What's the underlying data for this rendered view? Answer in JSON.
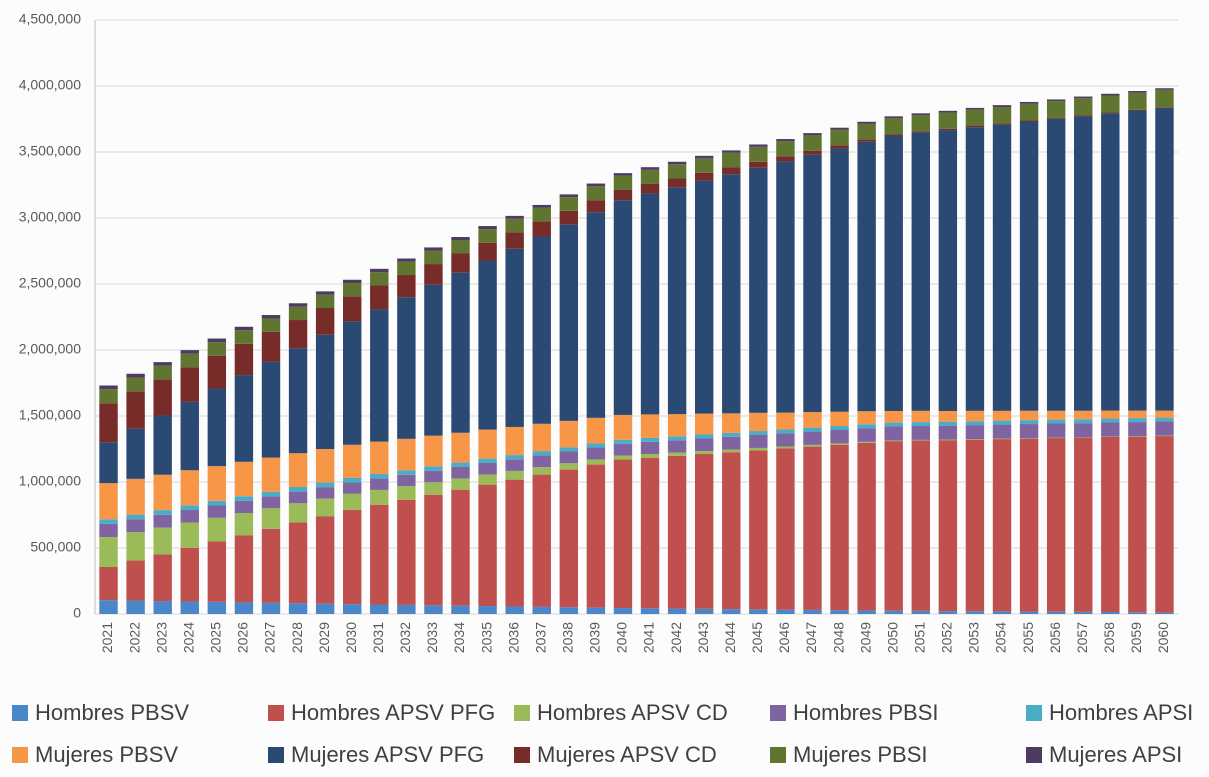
{
  "chart_data": {
    "type": "stacked_bar",
    "categories": [
      "2021",
      "2022",
      "2023",
      "2024",
      "2025",
      "2026",
      "2027",
      "2028",
      "2029",
      "2030",
      "2031",
      "2032",
      "2033",
      "2034",
      "2035",
      "2036",
      "2037",
      "2038",
      "2039",
      "2040",
      "2041",
      "2042",
      "2043",
      "2044",
      "2045",
      "2046",
      "2047",
      "2048",
      "2049",
      "2050",
      "2051",
      "2052",
      "2053",
      "2054",
      "2055",
      "2056",
      "2057",
      "2058",
      "2059",
      "2060"
    ],
    "ylim": [
      0,
      4500000
    ],
    "yticks": [
      0,
      {
        "value": 500000,
        "label": "500,000"
      },
      {
        "value": 1000000,
        "label": "1,000,000"
      },
      {
        "value": 1500000,
        "label": "1,500,000"
      },
      {
        "value": 2000000,
        "label": "2,000,000"
      },
      {
        "value": 2500000,
        "label": "2,500,000"
      },
      {
        "value": 3000000,
        "label": "3,000,000"
      },
      {
        "value": 3500000,
        "label": "3,500,000"
      },
      {
        "value": 4000000,
        "label": "4,000,000"
      },
      {
        "value": 4500000,
        "label": "4,500,000"
      }
    ],
    "grid": true,
    "legend": "bottom",
    "series": [
      {
        "name": "Hombres PBSV",
        "color": "#4a86c8",
        "values": [
          105000,
          102000,
          98000,
          95000,
          92000,
          88000,
          85000,
          82000,
          78000,
          75000,
          72000,
          69000,
          66000,
          63000,
          60000,
          57000,
          54000,
          51000,
          48000,
          45000,
          43000,
          41000,
          39000,
          37000,
          35000,
          33000,
          31000,
          29000,
          27000,
          25000,
          24000,
          22000,
          21000,
          20000,
          18000,
          17000,
          16000,
          15000,
          13000,
          12000
        ]
      },
      {
        "name": "Hombres APSV PFG",
        "color": "#c0504d",
        "values": [
          251000,
          303000,
          354000,
          406000,
          457000,
          509000,
          560000,
          612000,
          663000,
          715000,
          756000,
          797000,
          838000,
          879000,
          920000,
          961000,
          1002000,
          1043000,
          1084000,
          1125000,
          1141000,
          1157000,
          1173000,
          1189000,
          1205000,
          1221000,
          1237000,
          1253000,
          1269000,
          1285000,
          1290000,
          1295000,
          1300000,
          1305000,
          1311000,
          1316000,
          1321000,
          1326000,
          1331000,
          1336000
        ]
      },
      {
        "name": "Hombres APSV CD",
        "color": "#9bbb59",
        "values": [
          227000,
          215000,
          203000,
          192000,
          180000,
          168000,
          156000,
          145000,
          133000,
          121000,
          112000,
          103000,
          94000,
          85000,
          76000,
          66000,
          57000,
          48000,
          39000,
          30000,
          28000,
          25000,
          23000,
          20000,
          18000,
          15000,
          13000,
          10000,
          8000,
          5000,
          5000,
          5000,
          4000,
          4000,
          4000,
          4000,
          3000,
          3000,
          3000,
          3000
        ]
      },
      {
        "name": "Hombres PBSI",
        "color": "#8064a2",
        "values": [
          100000,
          98000,
          97000,
          95000,
          93000,
          92000,
          90000,
          88000,
          87000,
          85000,
          86000,
          86000,
          87000,
          87000,
          88000,
          88000,
          89000,
          89000,
          90000,
          90000,
          92000,
          93000,
          95000,
          96000,
          98000,
          99000,
          101000,
          102000,
          104000,
          105000,
          105000,
          105000,
          106000,
          106000,
          106000,
          106000,
          106000,
          107000,
          107000,
          107000
        ]
      },
      {
        "name": "Hombres APSI",
        "color": "#4bacc6",
        "values": [
          35000,
          35000,
          35000,
          35000,
          35000,
          35000,
          35000,
          35000,
          35000,
          35000,
          35000,
          34000,
          34000,
          33000,
          33000,
          32000,
          32000,
          31000,
          31000,
          30000,
          30000,
          30000,
          30000,
          30000,
          30000,
          30000,
          30000,
          30000,
          30000,
          30000,
          30000,
          30000,
          30000,
          30000,
          30000,
          30000,
          30000,
          30000,
          30000,
          30000
        ]
      },
      {
        "name": "Mujeres PBSV",
        "color": "#f79646",
        "values": [
          273000,
          271000,
          268000,
          266000,
          263000,
          261000,
          259000,
          256000,
          254000,
          251000,
          245000,
          238000,
          232000,
          226000,
          220000,
          213000,
          207000,
          201000,
          194000,
          188000,
          178000,
          168000,
          158000,
          148000,
          138000,
          128000,
          118000,
          108000,
          98000,
          88000,
          85000,
          81000,
          78000,
          74000,
          71000,
          67000,
          64000,
          60000,
          57000,
          53000
        ]
      },
      {
        "name": "Mujeres APSV PFG",
        "color": "#2a4a74",
        "values": [
          310000,
          379000,
          449000,
          518000,
          588000,
          657000,
          727000,
          796000,
          866000,
          935000,
          1004000,
          1073000,
          1143000,
          1212000,
          1281000,
          1350000,
          1419000,
          1489000,
          1558000,
          1627000,
          1673000,
          1719000,
          1765000,
          1811000,
          1857000,
          1903000,
          1949000,
          1995000,
          2041000,
          2087000,
          2108000,
          2128000,
          2149000,
          2170000,
          2191000,
          2211000,
          2232000,
          2252000,
          2273000,
          2294000
        ]
      },
      {
        "name": "Mujeres APSV CD",
        "color": "#772c2a",
        "values": [
          296000,
          284000,
          272000,
          261000,
          249000,
          237000,
          225000,
          213000,
          202000,
          190000,
          179000,
          168000,
          157000,
          146000,
          135000,
          124000,
          113000,
          102000,
          91000,
          80000,
          73000,
          66000,
          59000,
          52000,
          45000,
          38000,
          31000,
          24000,
          17000,
          10000,
          10000,
          9000,
          9000,
          8000,
          8000,
          7000,
          7000,
          6000,
          6000,
          5000
        ]
      },
      {
        "name": "Mujeres PBSI",
        "color": "#5f7530",
        "values": [
          106000,
          105000,
          105000,
          104000,
          103000,
          103000,
          102000,
          101000,
          101000,
          100000,
          101000,
          101000,
          102000,
          102000,
          103000,
          103000,
          104000,
          104000,
          105000,
          105000,
          107000,
          108000,
          110000,
          111000,
          113000,
          114000,
          116000,
          117000,
          119000,
          120000,
          121000,
          122000,
          123000,
          124000,
          126000,
          127000,
          128000,
          129000,
          130000,
          131000
        ]
      },
      {
        "name": "Mujeres APSI",
        "color": "#4d3b62",
        "values": [
          28000,
          28000,
          27000,
          27000,
          27000,
          26000,
          26000,
          26000,
          25000,
          25000,
          25000,
          24000,
          24000,
          23000,
          23000,
          22000,
          22000,
          21000,
          21000,
          20000,
          20000,
          19000,
          19000,
          18000,
          18000,
          17000,
          17000,
          16000,
          16000,
          15000,
          15000,
          15000,
          14000,
          14000,
          14000,
          13000,
          13000,
          13000,
          12000,
          12000
        ]
      }
    ]
  }
}
